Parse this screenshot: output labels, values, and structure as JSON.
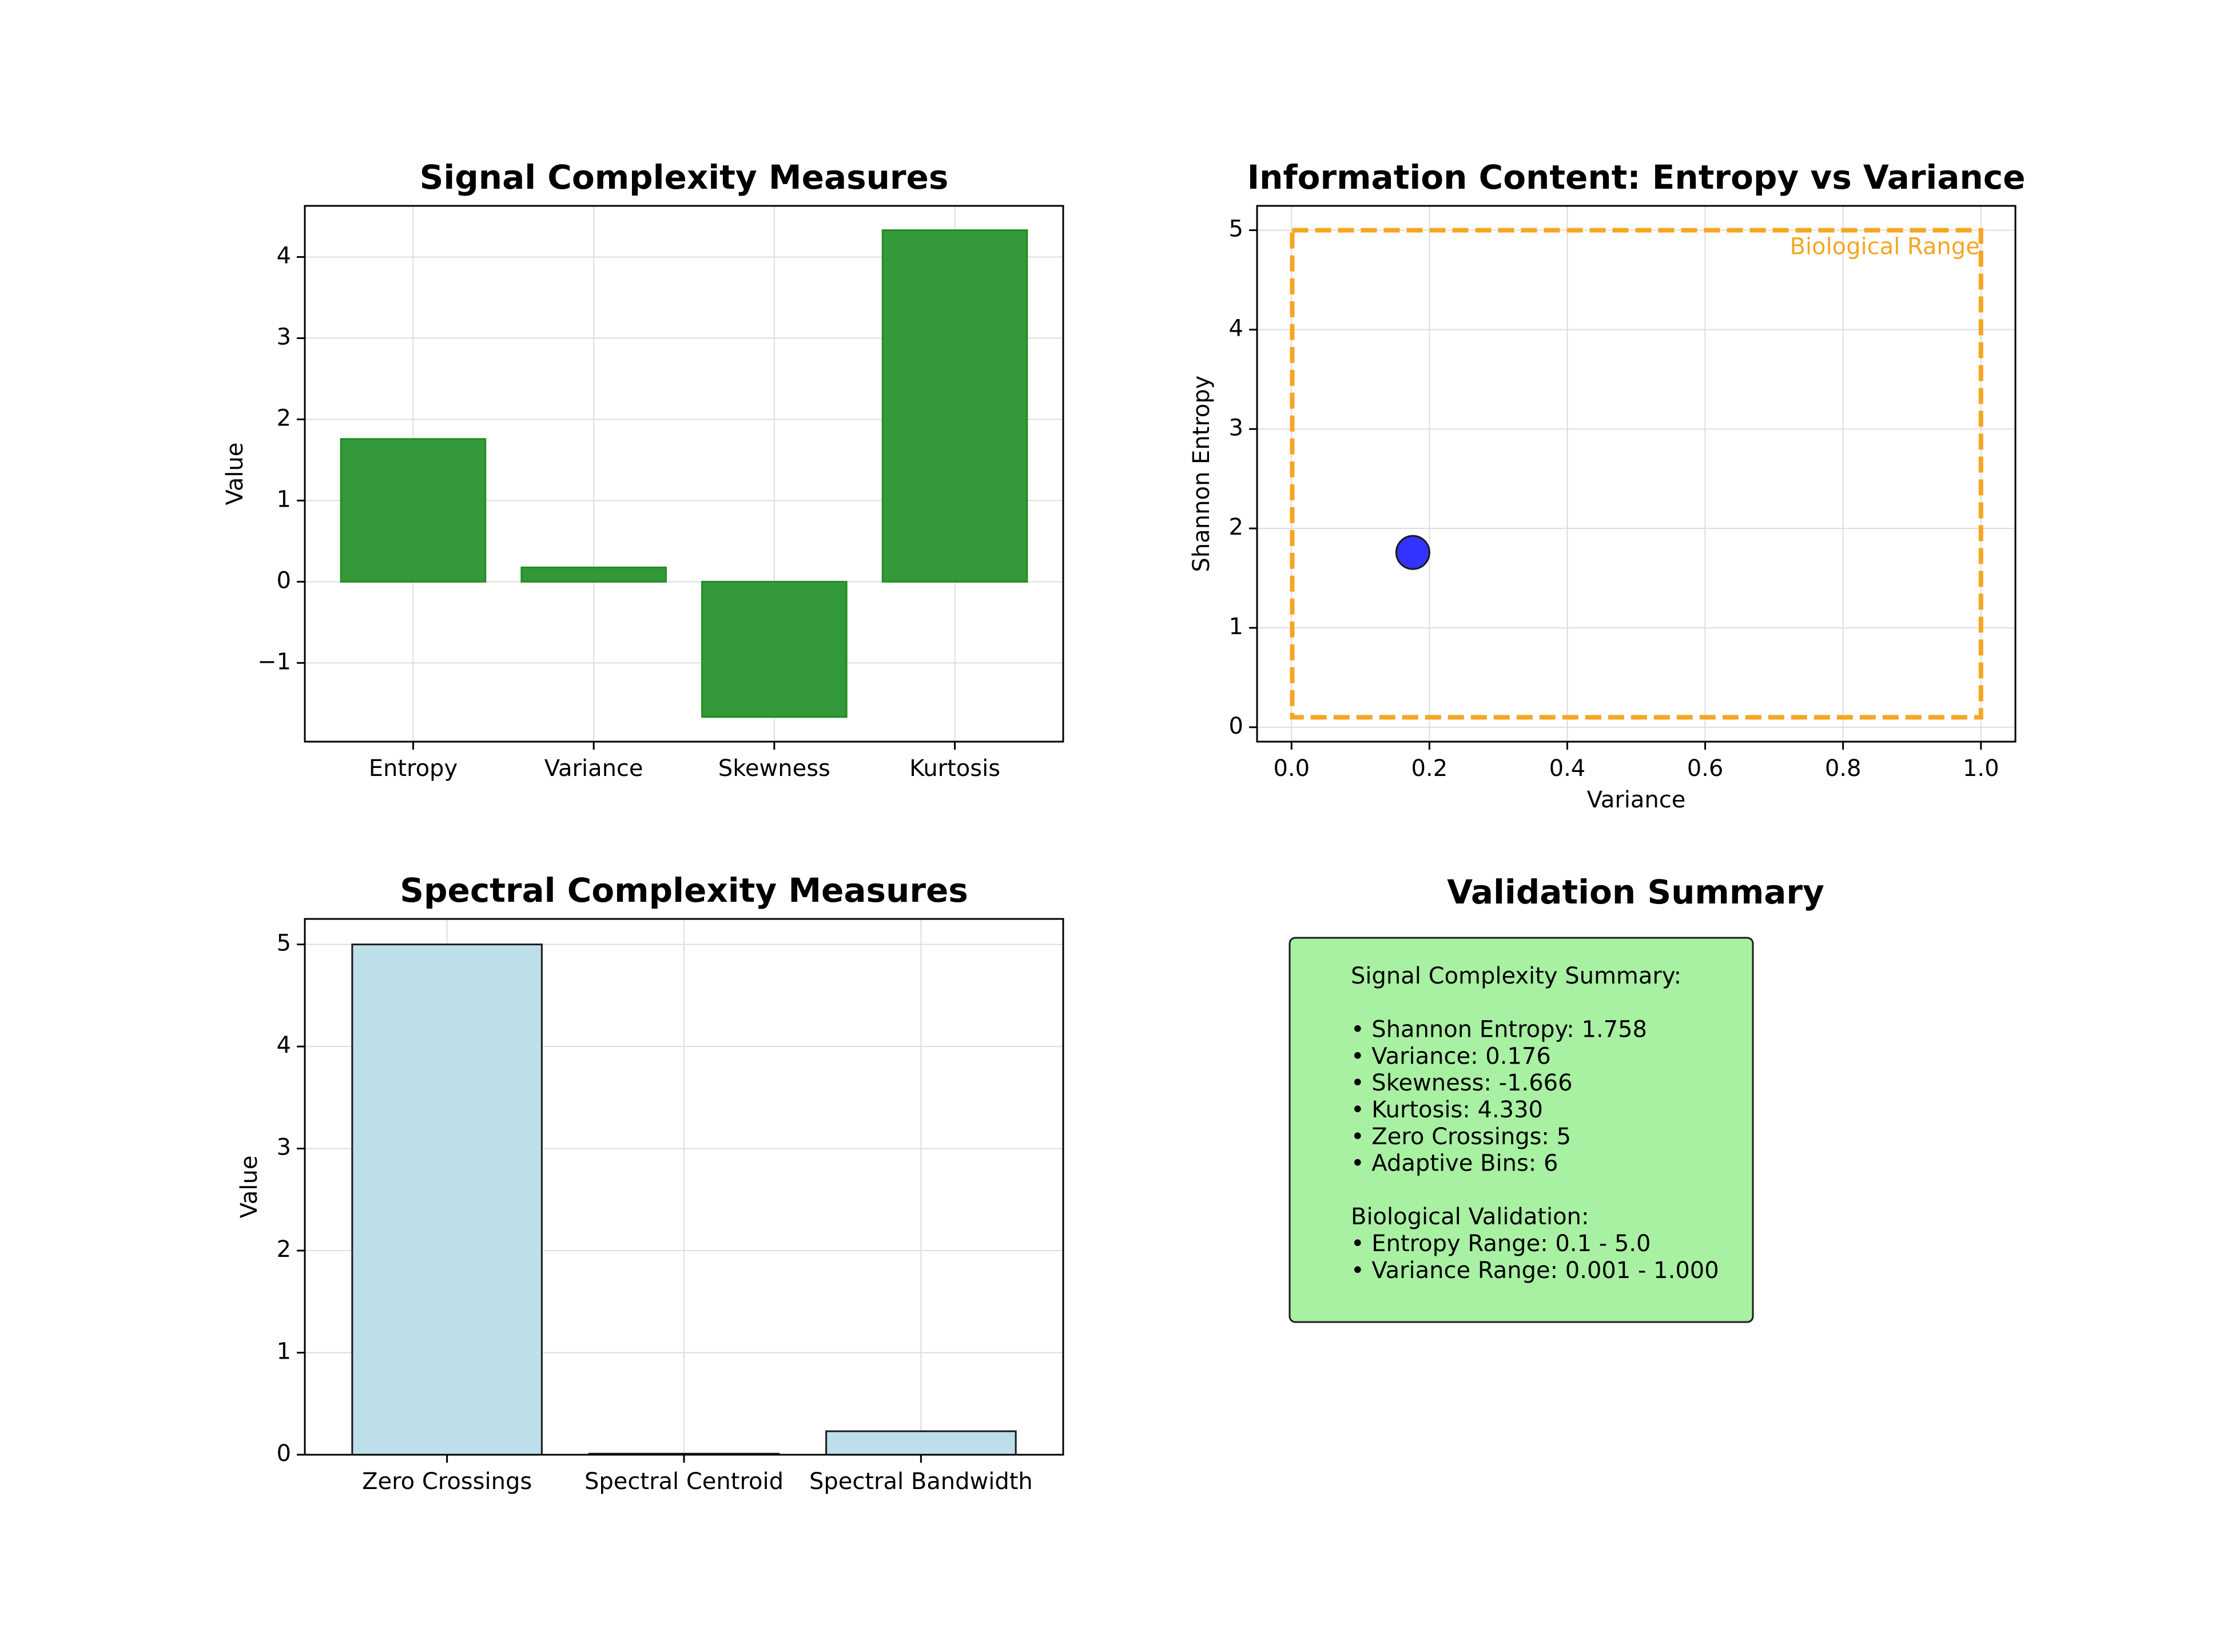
{
  "chart_data": [
    {
      "type": "bar",
      "title": "Signal Complexity Measures",
      "xlabel": "",
      "ylabel": "Value",
      "categories": [
        "Entropy",
        "Variance",
        "Skewness",
        "Kurtosis"
      ],
      "values": [
        1.758,
        0.176,
        -1.666,
        4.33
      ],
      "ylim": [
        -1.97,
        4.63
      ],
      "yticks": [
        -1,
        0,
        1,
        2,
        3,
        4
      ],
      "ytick_labels": [
        "−1",
        "0",
        "1",
        "2",
        "3",
        "4"
      ],
      "grid": true,
      "colors": {
        "bar": "#33993a",
        "edge": "#228b22"
      }
    },
    {
      "type": "scatter",
      "title": "Information Content: Entropy vs Variance",
      "xlabel": "Variance",
      "ylabel": "Shannon Entropy",
      "points": [
        {
          "x": 0.176,
          "y": 1.758
        }
      ],
      "xlim": [
        -0.05,
        1.05
      ],
      "ylim": [
        -0.145,
        5.245
      ],
      "xticks": [
        0.0,
        0.2,
        0.4,
        0.6,
        0.8,
        1.0
      ],
      "xtick_labels": [
        "0.0",
        "0.2",
        "0.4",
        "0.6",
        "0.8",
        "1.0"
      ],
      "yticks": [
        0,
        1,
        2,
        3,
        4,
        5
      ],
      "ytick_labels": [
        "0",
        "1",
        "2",
        "3",
        "4",
        "5"
      ],
      "grid": true,
      "region": {
        "label": "Biological Range",
        "x": [
          0.001,
          1.0
        ],
        "y": [
          0.1,
          5.0
        ]
      },
      "colors": {
        "point": "#3333ff",
        "region": "#f5a623"
      }
    },
    {
      "type": "bar",
      "title": "Spectral Complexity Measures",
      "xlabel": "",
      "ylabel": "Value",
      "categories": [
        "Zero Crossings",
        "Spectral Centroid",
        "Spectral Bandwidth"
      ],
      "values": [
        5,
        0.01,
        0.23
      ],
      "ylim": [
        0,
        5.25
      ],
      "yticks": [
        0,
        1,
        2,
        3,
        4,
        5
      ],
      "ytick_labels": [
        "0",
        "1",
        "2",
        "3",
        "4",
        "5"
      ],
      "grid": true,
      "colors": {
        "bar": "#bddfe9",
        "edge": "#1a1a1a"
      }
    }
  ],
  "summary": {
    "title": "Validation Summary",
    "lines": [
      "Signal Complexity Summary:",
      "",
      "• Shannon Entropy: 1.758",
      "• Variance: 0.176",
      "• Skewness: -1.666",
      "• Kurtosis: 4.330",
      "• Zero Crossings: 5",
      "• Adaptive Bins: 6",
      "",
      "Biological Validation:",
      "• Entropy Range: 0.1 - 5.0",
      "• Variance Range: 0.001 - 1.000"
    ],
    "box_color": "#a8f0a2"
  }
}
